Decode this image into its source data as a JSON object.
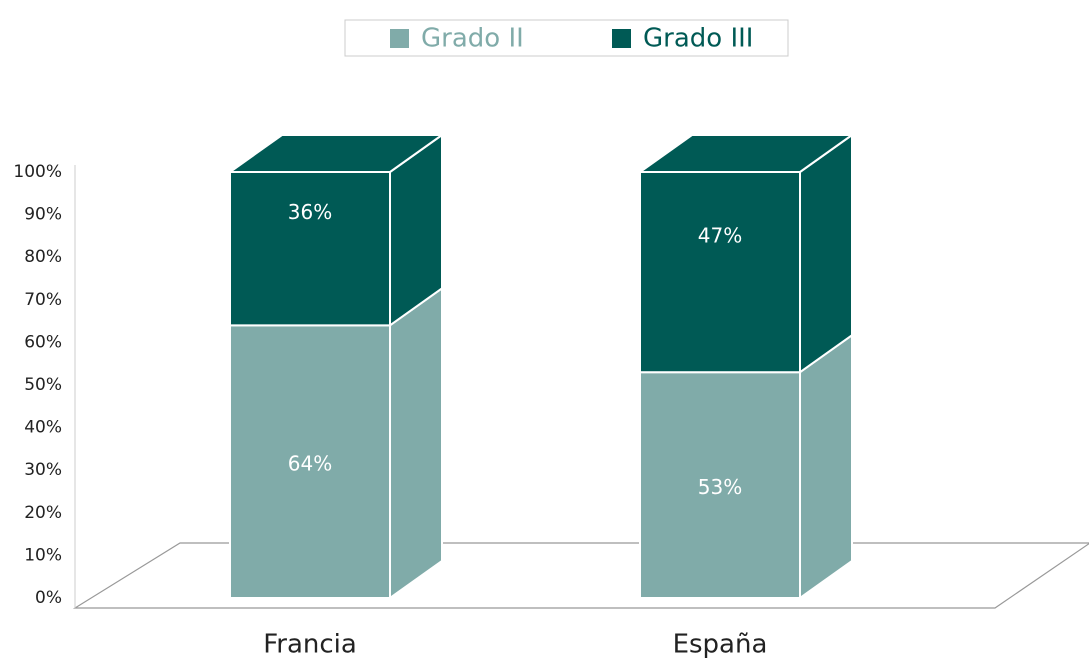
{
  "chart_data": {
    "type": "bar3d_stacked",
    "categories": [
      "Francia",
      "España"
    ],
    "series": [
      {
        "name": "Grado II",
        "color": "#80aba9",
        "values": [
          64,
          53
        ],
        "value_labels": [
          "64%",
          "53%"
        ]
      },
      {
        "name": "Grado III",
        "color": "#005a55",
        "values": [
          36,
          47
        ],
        "value_labels": [
          "36%",
          "47%"
        ]
      }
    ],
    "ylim": [
      0,
      100
    ],
    "yticks": [
      {
        "value": 0,
        "label": "0%"
      },
      {
        "value": 10,
        "label": "10%"
      },
      {
        "value": 20,
        "label": "20%"
      },
      {
        "value": 30,
        "label": "30%"
      },
      {
        "value": 40,
        "label": "40%"
      },
      {
        "value": 50,
        "label": "50%"
      },
      {
        "value": 60,
        "label": "60%"
      },
      {
        "value": 70,
        "label": "70%"
      },
      {
        "value": 80,
        "label": "80%"
      },
      {
        "value": 90,
        "label": "90%"
      },
      {
        "value": 100,
        "label": "100%"
      }
    ],
    "legend": "top"
  }
}
